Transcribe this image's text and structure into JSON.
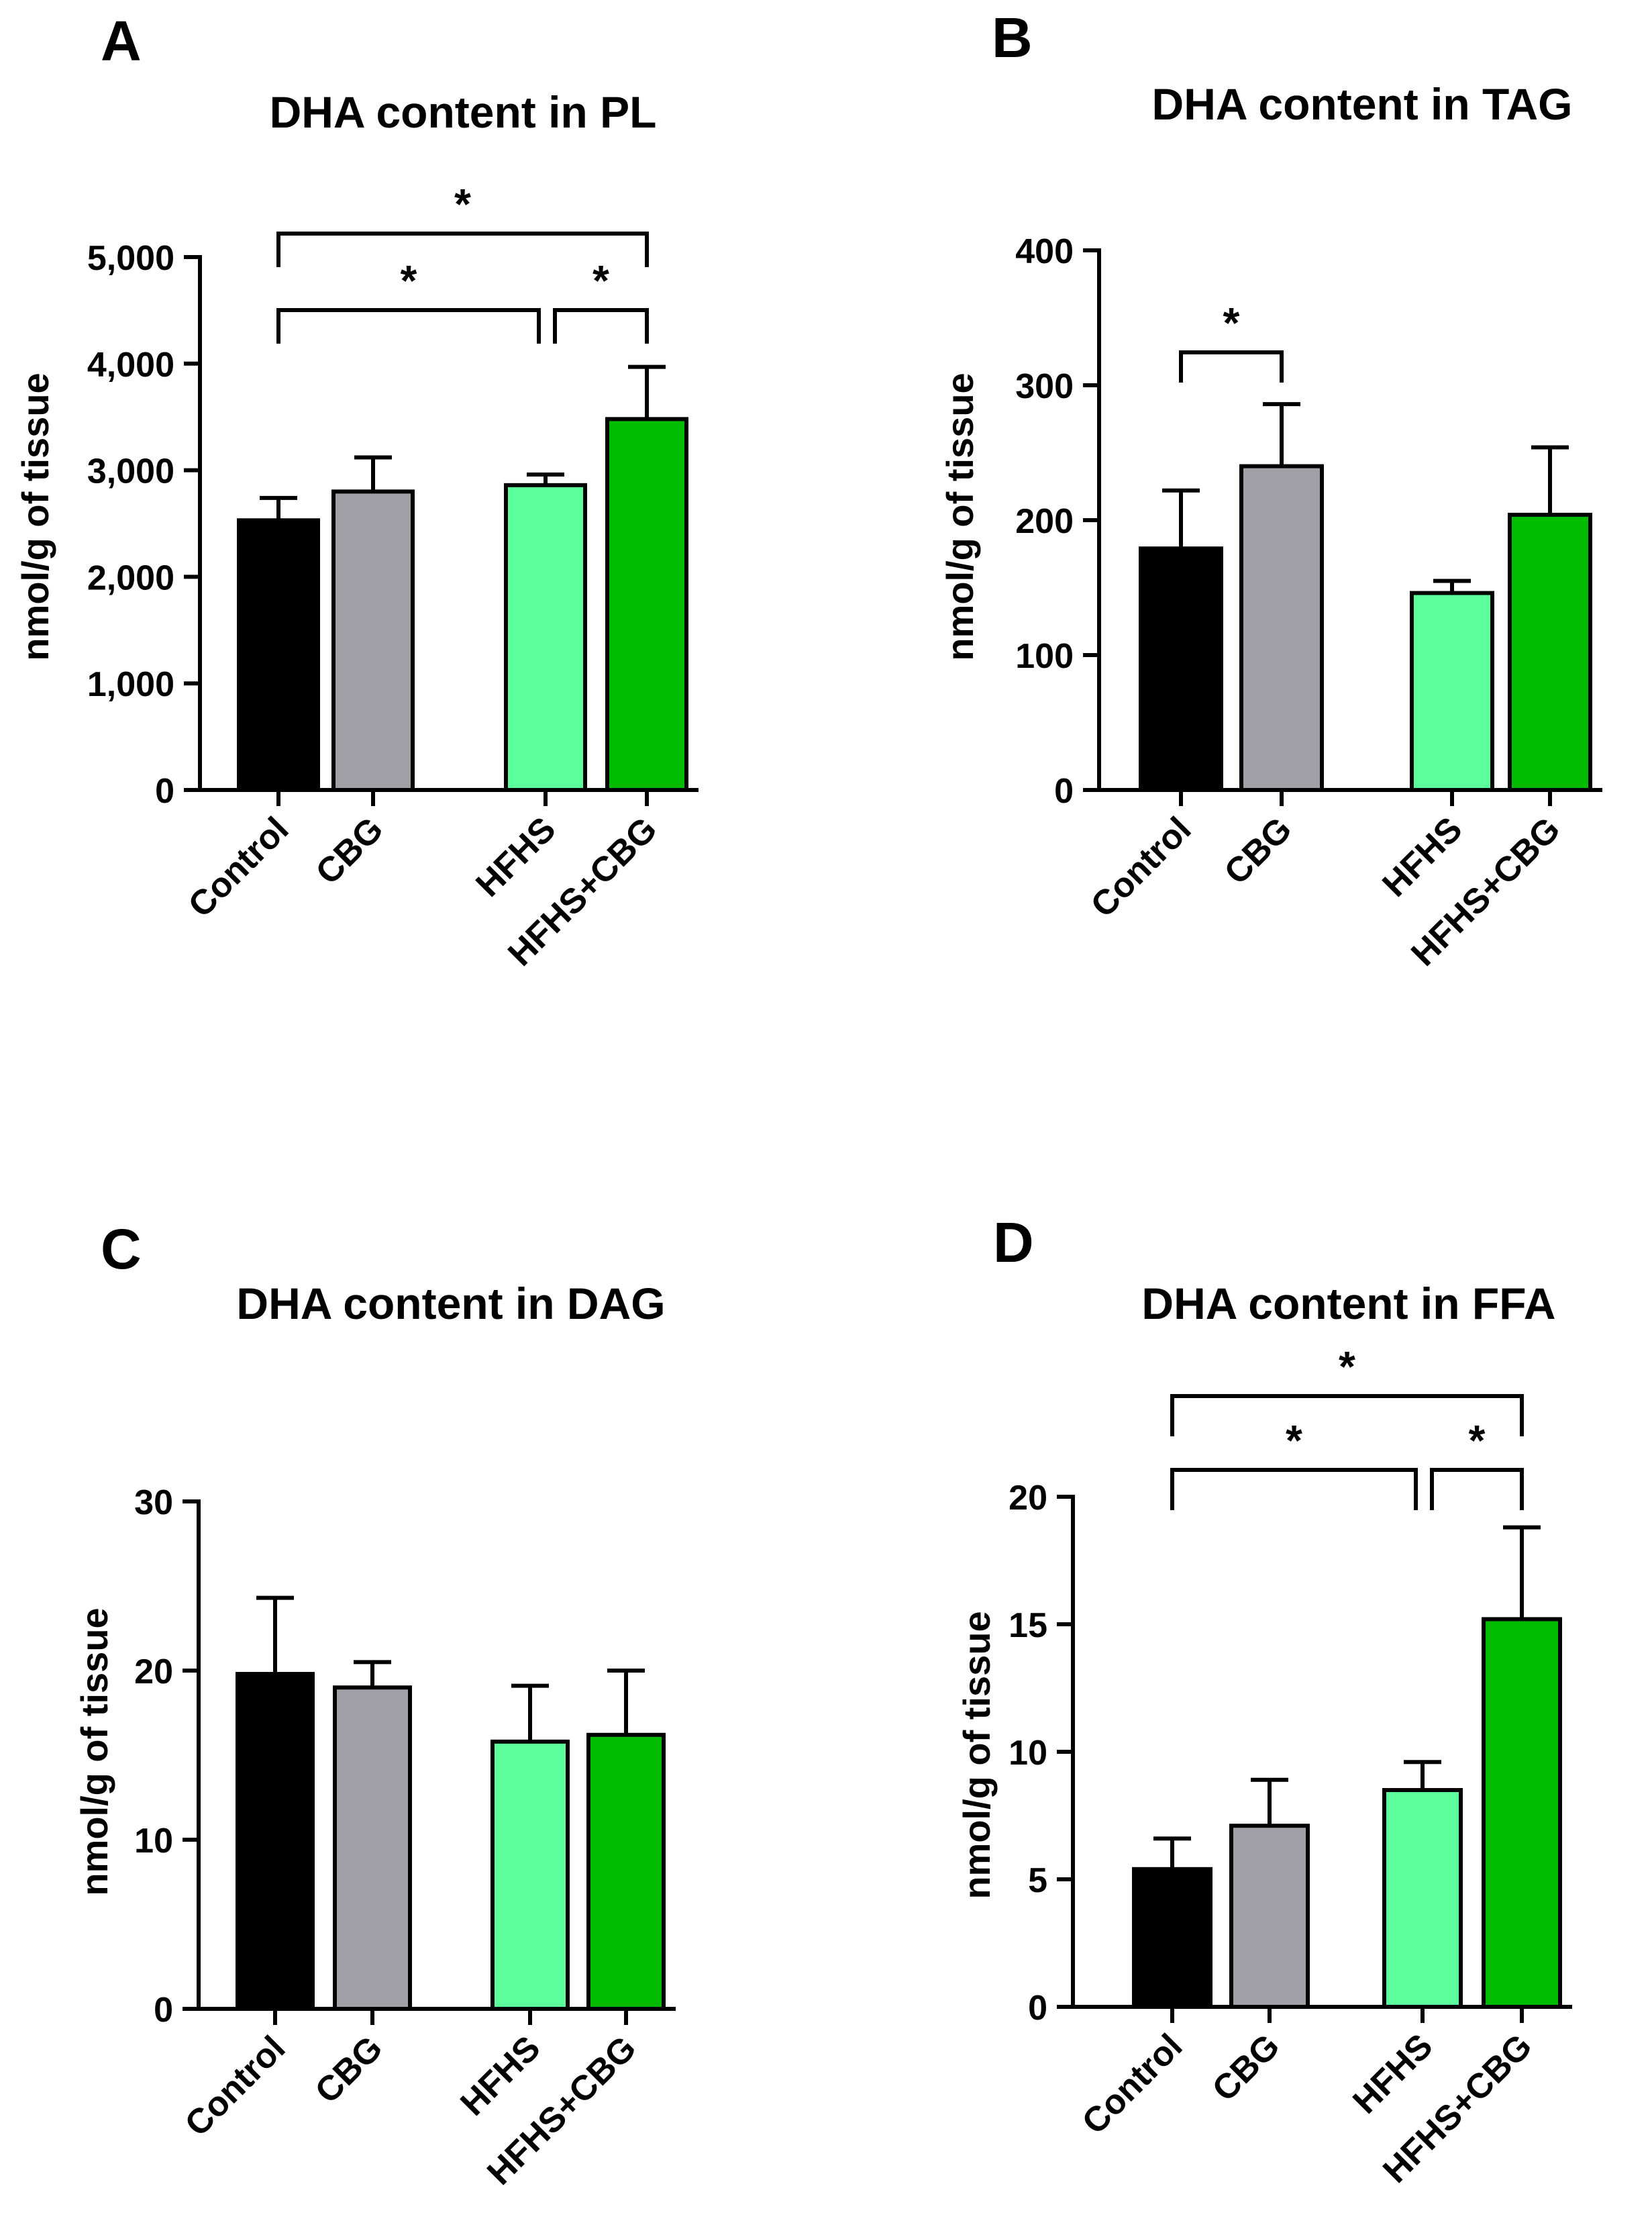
{
  "figure": {
    "colors": {
      "Control": "#000000",
      "CBG": "#a0a0a6",
      "HFHS": "#5cff9c",
      "HFHS+CBG": "#00bb00",
      "axis": "#000000"
    }
  },
  "chart_data": [
    {
      "panel_letter": "A",
      "type": "bar",
      "title": "DHA content in PL",
      "xlabel": "",
      "ylabel": "nmol/g of tissue",
      "categories": [
        "Control",
        "CBG",
        "HFHS",
        "HFHS+CBG"
      ],
      "values": [
        2530,
        2800,
        2860,
        3480
      ],
      "errors": [
        210,
        320,
        100,
        490
      ],
      "ylim": [
        0,
        5000
      ],
      "yticks": [
        0,
        1000,
        2000,
        3000,
        4000,
        5000
      ],
      "ytick_labels": [
        "0",
        "1,000",
        "2,000",
        "3,000",
        "4,000",
        "5,000"
      ],
      "significance": [
        {
          "from": "Control",
          "to": "HFHS",
          "label": "*",
          "level": 1
        },
        {
          "from": "HFHS",
          "to": "HFHS+CBG",
          "label": "*",
          "level": 1
        },
        {
          "from": "Control",
          "to": "HFHS+CBG",
          "label": "*",
          "level": 2
        }
      ]
    },
    {
      "panel_letter": "B",
      "type": "bar",
      "title": "DHA content in TAG",
      "xlabel": "",
      "ylabel": "nmol/g of tissue",
      "categories": [
        "Control",
        "CBG",
        "HFHS",
        "HFHS+CBG"
      ],
      "values": [
        179,
        240,
        146,
        204
      ],
      "errors": [
        43,
        46,
        9,
        50
      ],
      "ylim": [
        0,
        400
      ],
      "yticks": [
        0,
        100,
        200,
        300,
        400
      ],
      "ytick_labels": [
        "0",
        "100",
        "200",
        "300",
        "400"
      ],
      "significance": [
        {
          "from": "Control",
          "to": "CBG",
          "label": "*",
          "level": 1
        }
      ]
    },
    {
      "panel_letter": "C",
      "type": "bar",
      "title": "DHA content in DAG",
      "xlabel": "",
      "ylabel": "nmol/g of tissue",
      "categories": [
        "Control",
        "CBG",
        "HFHS",
        "HFHS+CBG"
      ],
      "values": [
        19.8,
        19.0,
        15.8,
        16.2
      ],
      "errors": [
        4.5,
        1.5,
        3.3,
        3.8
      ],
      "ylim": [
        0,
        30
      ],
      "yticks": [
        0,
        10,
        20,
        30
      ],
      "ytick_labels": [
        "0",
        "10",
        "20",
        "30"
      ],
      "significance": []
    },
    {
      "panel_letter": "D",
      "type": "bar",
      "title": "DHA content in FFA",
      "xlabel": "",
      "ylabel": "nmol/g of tissue",
      "categories": [
        "Control",
        "CBG",
        "HFHS",
        "HFHS+CBG"
      ],
      "values": [
        5.4,
        7.1,
        8.5,
        15.2
      ],
      "errors": [
        1.2,
        1.8,
        1.1,
        3.6
      ],
      "ylim": [
        0,
        20
      ],
      "yticks": [
        0,
        5,
        10,
        15,
        20
      ],
      "ytick_labels": [
        "0",
        "5",
        "10",
        "15",
        "20"
      ],
      "significance": [
        {
          "from": "Control",
          "to": "HFHS",
          "label": "*",
          "level": 1
        },
        {
          "from": "HFHS",
          "to": "HFHS+CBG",
          "label": "*",
          "level": 1
        },
        {
          "from": "Control",
          "to": "HFHS+CBG",
          "label": "*",
          "level": 2
        }
      ]
    }
  ]
}
